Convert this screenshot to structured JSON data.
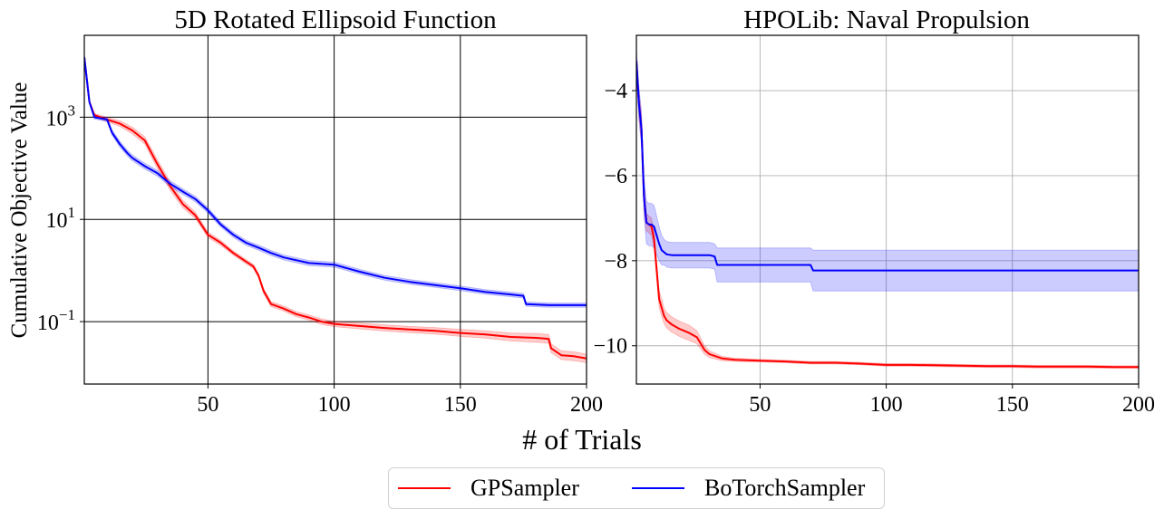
{
  "figure": {
    "xlabel": "# of Trials",
    "legend": [
      {
        "name": "GPSampler",
        "color": "#ff0000"
      },
      {
        "name": "BoTorchSampler",
        "color": "#0000ff"
      }
    ]
  },
  "chart_data": [
    {
      "type": "line",
      "title": "5D Rotated Ellipsoid Function",
      "xlabel": "",
      "ylabel": "Cumulative Objective Value",
      "yscale": "log",
      "xlim": [
        1,
        200
      ],
      "ylim": [
        0.006,
        40000
      ],
      "xticks": [
        50,
        100,
        150,
        200
      ],
      "xtick_labels": [
        "50",
        "100",
        "150",
        "200"
      ],
      "yticks": [
        0.1,
        10,
        1000
      ],
      "ytick_labels": [
        {
          "base": "10",
          "exp": "−1"
        },
        {
          "base": "10",
          "exp": "1"
        },
        {
          "base": "10",
          "exp": "3"
        }
      ],
      "grid": true,
      "grid_color": "#000000",
      "series": [
        {
          "name": "GPSampler",
          "color": "#ff0000",
          "x": [
            1,
            3,
            5,
            10,
            15,
            20,
            25,
            30,
            35,
            40,
            45,
            50,
            55,
            60,
            65,
            68,
            70,
            72,
            75,
            80,
            85,
            90,
            95,
            100,
            110,
            120,
            130,
            140,
            150,
            160,
            170,
            180,
            185,
            186,
            190,
            195,
            200
          ],
          "y": [
            15000,
            2000,
            1100,
            900,
            750,
            550,
            350,
            120,
            45,
            20,
            12,
            5,
            3.5,
            2.2,
            1.5,
            1.2,
            0.8,
            0.4,
            0.22,
            0.18,
            0.14,
            0.12,
            0.1,
            0.09,
            0.082,
            0.075,
            0.07,
            0.066,
            0.06,
            0.056,
            0.05,
            0.048,
            0.046,
            0.03,
            0.022,
            0.021,
            0.019
          ],
          "band": [
            0.15,
            0.08,
            0.08,
            0.1,
            0.13,
            0.16,
            0.18,
            0.22,
            0.2,
            0.18,
            0.15,
            0.13,
            0.12,
            0.1,
            0.1,
            0.1,
            0.1,
            0.12,
            0.12,
            0.12,
            0.12,
            0.12,
            0.13,
            0.13,
            0.14,
            0.15,
            0.15,
            0.16,
            0.17,
            0.18,
            0.2,
            0.22,
            0.22,
            0.22,
            0.22,
            0.22,
            0.22
          ]
        },
        {
          "name": "BoTorchSampler",
          "color": "#0000ff",
          "x": [
            1,
            3,
            5,
            10,
            12,
            15,
            18,
            20,
            25,
            30,
            35,
            40,
            45,
            50,
            55,
            60,
            65,
            70,
            75,
            80,
            90,
            100,
            110,
            120,
            130,
            140,
            150,
            160,
            170,
            175,
            176,
            185,
            195,
            200
          ],
          "y": [
            15000,
            2000,
            1000,
            900,
            500,
            300,
            200,
            160,
            110,
            80,
            50,
            35,
            25,
            15,
            8,
            5,
            3.5,
            2.8,
            2.2,
            1.8,
            1.4,
            1.3,
            0.95,
            0.72,
            0.6,
            0.52,
            0.45,
            0.38,
            0.34,
            0.32,
            0.22,
            0.21,
            0.21,
            0.21
          ],
          "band": [
            0.12,
            0.08,
            0.08,
            0.1,
            0.12,
            0.14,
            0.14,
            0.14,
            0.14,
            0.14,
            0.14,
            0.13,
            0.13,
            0.13,
            0.12,
            0.12,
            0.12,
            0.12,
            0.12,
            0.12,
            0.12,
            0.12,
            0.11,
            0.11,
            0.11,
            0.11,
            0.11,
            0.11,
            0.11,
            0.11,
            0.1,
            0.1,
            0.1,
            0.1
          ]
        }
      ]
    },
    {
      "type": "line",
      "title": "HPOLib: Naval Propulsion",
      "xlabel": "",
      "ylabel": "",
      "yscale": "linear",
      "xlim": [
        1,
        200
      ],
      "ylim": [
        -10.9,
        -2.7
      ],
      "xticks": [
        50,
        100,
        150,
        200
      ],
      "xtick_labels": [
        "50",
        "100",
        "150",
        "200"
      ],
      "yticks": [
        -10,
        -8,
        -6,
        -4
      ],
      "ytick_labels": [
        "−10",
        "−8",
        "−6",
        "−4"
      ],
      "grid": true,
      "grid_color": "#b0b0b0",
      "series": [
        {
          "name": "GPSampler",
          "color": "#ff0000",
          "x": [
            1,
            2,
            3,
            4,
            5,
            6,
            7,
            8,
            9,
            10,
            11,
            12,
            13,
            15,
            18,
            20,
            22,
            25,
            28,
            30,
            35,
            40,
            50,
            60,
            70,
            80,
            90,
            100,
            110,
            120,
            130,
            140,
            150,
            160,
            170,
            180,
            190,
            200
          ],
          "y": [
            -3.3,
            -4.3,
            -4.9,
            -6.5,
            -7.1,
            -7.15,
            -7.2,
            -7.5,
            -8.2,
            -8.9,
            -9.1,
            -9.3,
            -9.4,
            -9.5,
            -9.6,
            -9.65,
            -9.7,
            -9.8,
            -10.1,
            -10.2,
            -10.3,
            -10.33,
            -10.35,
            -10.37,
            -10.4,
            -10.4,
            -10.42,
            -10.45,
            -10.45,
            -10.46,
            -10.47,
            -10.48,
            -10.48,
            -10.49,
            -10.49,
            -10.49,
            -10.5,
            -10.5
          ],
          "band": [
            0.0,
            0.3,
            0.3,
            0.3,
            0.2,
            0.2,
            0.2,
            0.2,
            0.2,
            0.2,
            0.2,
            0.18,
            0.18,
            0.18,
            0.18,
            0.18,
            0.18,
            0.15,
            0.1,
            0.08,
            0.05,
            0.04,
            0.03,
            0.03,
            0.03,
            0.03,
            0.03,
            0.03,
            0.03,
            0.03,
            0.03,
            0.03,
            0.03,
            0.03,
            0.03,
            0.03,
            0.03,
            0.03
          ]
        },
        {
          "name": "BoTorchSampler",
          "color": "#0000ff",
          "x": [
            1,
            2,
            3,
            4,
            5,
            6,
            7,
            8,
            9,
            10,
            11,
            12,
            13,
            15,
            20,
            25,
            30,
            32,
            33,
            40,
            50,
            60,
            70,
            71,
            80,
            100,
            150,
            200
          ],
          "y": [
            -3.3,
            -4.3,
            -4.9,
            -6.5,
            -7.1,
            -7.15,
            -7.15,
            -7.2,
            -7.4,
            -7.6,
            -7.75,
            -7.8,
            -7.85,
            -7.87,
            -7.87,
            -7.87,
            -7.87,
            -7.9,
            -8.1,
            -8.1,
            -8.1,
            -8.1,
            -8.1,
            -8.23,
            -8.23,
            -8.23,
            -8.23,
            -8.23
          ],
          "band": [
            0.3,
            0.4,
            0.4,
            0.45,
            0.5,
            0.5,
            0.5,
            0.5,
            0.45,
            0.4,
            0.35,
            0.3,
            0.3,
            0.3,
            0.3,
            0.3,
            0.3,
            0.3,
            0.4,
            0.4,
            0.4,
            0.4,
            0.4,
            0.48,
            0.48,
            0.48,
            0.48,
            0.48
          ]
        }
      ]
    }
  ]
}
